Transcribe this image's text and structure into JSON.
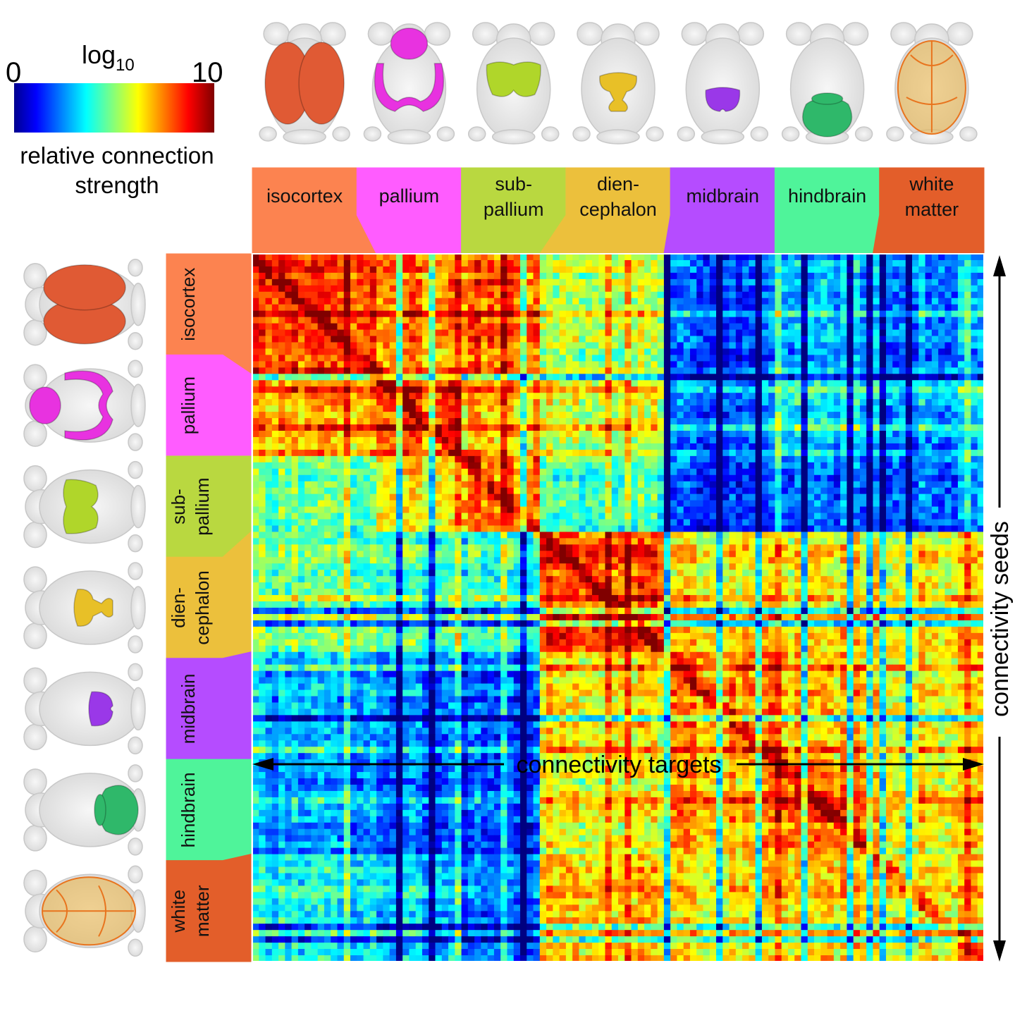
{
  "chart_data": {
    "type": "heatmap",
    "title": "",
    "xlabel": "connectivity targets",
    "ylabel": "connectivity seeds",
    "colorbar": {
      "title_base": "log",
      "title_subscript": "10",
      "min_label": "0",
      "max_label": "10",
      "range": [
        0,
        10
      ],
      "caption_line1": "relative connection",
      "caption_line2": "strength",
      "colormap": "jet"
    },
    "matrix_size": 112,
    "groups": [
      {
        "id": "isocortex",
        "lines": [
          "isocortex"
        ],
        "start": 0,
        "end": 19,
        "color": "#fc8350",
        "brain_color": "#e05a34"
      },
      {
        "id": "pallium",
        "lines": [
          "pallium"
        ],
        "start": 19,
        "end": 32,
        "color": "#ff5cff",
        "brain_color": "#e832e0"
      },
      {
        "id": "subpallium",
        "lines": [
          "sub-",
          "pallium"
        ],
        "start": 32,
        "end": 44,
        "color": "#b9d840",
        "brain_color": "#b0d62a"
      },
      {
        "id": "diencephalon",
        "lines": [
          "dien-",
          "cephalon"
        ],
        "start": 44,
        "end": 63,
        "color": "#ecc03c",
        "brain_color": "#e8c027"
      },
      {
        "id": "midbrain",
        "lines": [
          "midbrain"
        ],
        "start": 63,
        "end": 80,
        "color": "#b54cff",
        "brain_color": "#9a38e8"
      },
      {
        "id": "hindbrain",
        "lines": [
          "hindbrain"
        ],
        "start": 80,
        "end": 95,
        "color": "#4ff49a",
        "brain_color": "#2fb86a"
      },
      {
        "id": "whitematter",
        "lines": [
          "white",
          "matter"
        ],
        "start": 95,
        "end": 112,
        "color": "#e35e2a",
        "brain_color": "#eab040"
      }
    ],
    "block_strengths": [
      [
        8.2,
        7.5,
        7.9,
        5.6,
        2.0,
        3.0,
        2.8
      ],
      [
        7.0,
        8.0,
        6.9,
        5.9,
        2.3,
        3.6,
        3.2
      ],
      [
        4.8,
        6.4,
        7.6,
        4.5,
        1.8,
        2.3,
        2.6
      ],
      [
        4.6,
        4.2,
        4.0,
        8.0,
        6.2,
        6.1,
        6.4
      ],
      [
        3.0,
        2.6,
        2.2,
        6.5,
        7.4,
        6.8,
        6.5
      ],
      [
        2.6,
        2.2,
        1.8,
        6.0,
        7.0,
        7.6,
        6.5
      ],
      [
        4.0,
        3.4,
        2.6,
        7.0,
        6.6,
        6.8,
        6.9
      ]
    ]
  }
}
